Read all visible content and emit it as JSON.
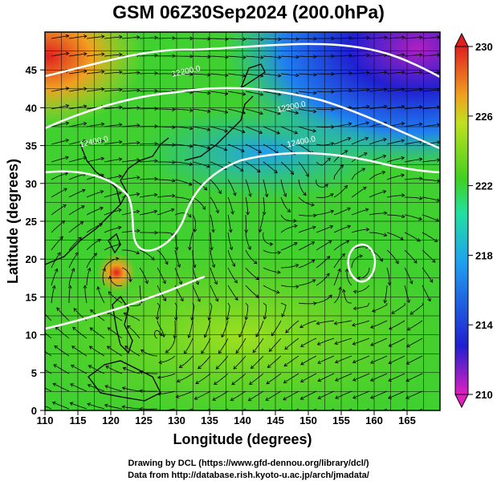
{
  "title": "GSM 06Z30Sep2024 (200.0hPa)",
  "credits": {
    "drawing": "Drawing by DCL (https://www.gfd-dennou.org/library/dcl/)",
    "data": "Data from http://database.rish.kyoto-u.ac.jp/arch/jmadata/"
  },
  "chart_data": {
    "type": "heatmap",
    "xlabel": "Longitude (degrees)",
    "ylabel": "Latitude  (degrees)",
    "xlim": [
      110,
      170
    ],
    "ylim": [
      0,
      50
    ],
    "xticks": [
      110,
      115,
      120,
      125,
      130,
      135,
      140,
      145,
      150,
      155,
      160,
      165
    ],
    "yticks": [
      0,
      5,
      10,
      15,
      20,
      25,
      30,
      35,
      40,
      45
    ],
    "grid": true,
    "colorbar": {
      "ticks": [
        210,
        214,
        218,
        222,
        226,
        230
      ],
      "range": [
        210,
        230
      ],
      "colors": [
        "#e020c0",
        "#2020d0",
        "#20a0f0",
        "#20e0a0",
        "#40d020",
        "#c0e020",
        "#f0a020",
        "#e02020"
      ]
    },
    "contour_labels": [
      {
        "text": "12200.0",
        "lon": 131.5,
        "lat": 44.5
      },
      {
        "text": "12200.0",
        "lon": 147.5,
        "lat": 39.8
      },
      {
        "text": "12400.0",
        "lon": 117.5,
        "lat": 35.2
      },
      {
        "text": "12400.0",
        "lon": 149.0,
        "lat": 35.2
      }
    ],
    "highs": [
      {
        "lon": 121.0,
        "lat": 20.0,
        "value": 229
      },
      {
        "lon": 113.0,
        "lat": 47.0,
        "value": 229
      }
    ],
    "lows": [
      {
        "lon": 167.0,
        "lat": 46.0,
        "value": 212
      },
      {
        "lon": 158.0,
        "lat": 43.0,
        "value": 214
      },
      {
        "lon": 143.0,
        "lat": 45.0,
        "value": 218
      }
    ]
  }
}
